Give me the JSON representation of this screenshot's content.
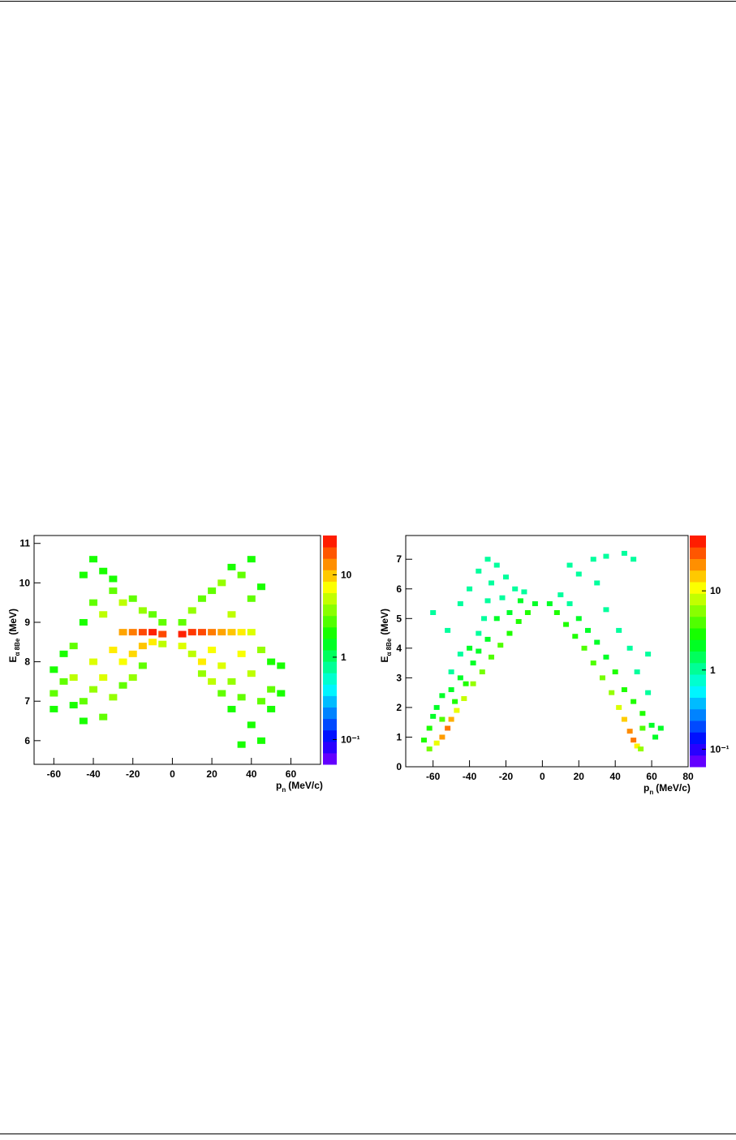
{
  "chart_data": [
    {
      "type": "heatmap",
      "xlabel": [
        "p",
        "n",
        "(MeV/c)"
      ],
      "ylabel": [
        "E",
        "α 8Be",
        "(MeV)"
      ],
      "xlim": [
        -70,
        75
      ],
      "xticks": [
        -60,
        -40,
        -20,
        0,
        20,
        40,
        60
      ],
      "ylim": [
        5.4,
        11.2
      ],
      "yticks": [
        6,
        7,
        8,
        9,
        10,
        11
      ],
      "zlim": [
        0.05,
        30
      ],
      "zlog": true,
      "zticks": [
        {
          "value": 0.1,
          "label": "10⁻¹"
        },
        1,
        10
      ],
      "x": [
        -25,
        -20,
        -15,
        -10,
        -5,
        5,
        10,
        15,
        20,
        25,
        30,
        35,
        40,
        -60,
        -60,
        -60,
        -55,
        -55,
        -50,
        -50,
        -50,
        -45,
        -45,
        -45,
        -45,
        -40,
        -40,
        -40,
        -40,
        -35,
        -35,
        -35,
        -35,
        -30,
        -30,
        -30,
        -30,
        -25,
        -25,
        -25,
        -20,
        -20,
        -20,
        -15,
        -15,
        -15,
        -10,
        -10,
        -5,
        -5,
        5,
        5,
        10,
        10,
        15,
        15,
        15,
        20,
        20,
        20,
        25,
        25,
        25,
        30,
        30,
        30,
        30,
        35,
        35,
        35,
        40,
        40,
        40,
        40,
        45,
        45,
        45,
        50,
        50,
        50,
        55,
        55,
        45,
        35
      ],
      "y": [
        8.75,
        8.75,
        8.75,
        8.75,
        8.7,
        8.7,
        8.75,
        8.75,
        8.75,
        8.75,
        8.75,
        8.75,
        8.75,
        7.8,
        7.2,
        6.8,
        7.5,
        8.2,
        6.9,
        7.6,
        8.4,
        9.0,
        7.0,
        6.5,
        10.2,
        10.6,
        9.5,
        8.0,
        7.3,
        10.3,
        9.2,
        7.6,
        6.6,
        9.8,
        8.3,
        7.1,
        10.1,
        9.5,
        8.0,
        7.4,
        9.6,
        8.2,
        7.6,
        9.3,
        8.4,
        7.9,
        9.2,
        8.5,
        9.0,
        8.45,
        9.0,
        8.4,
        9.3,
        8.2,
        9.6,
        8.0,
        7.7,
        9.8,
        8.3,
        7.5,
        10.0,
        7.9,
        7.2,
        10.4,
        9.2,
        7.5,
        6.8,
        10.2,
        8.2,
        7.1,
        10.6,
        9.6,
        7.7,
        6.4,
        9.9,
        8.3,
        7.0,
        8.0,
        7.3,
        6.8,
        7.9,
        7.2,
        6.0,
        5.9
      ],
      "values": [
        12,
        15,
        20,
        25,
        20,
        25,
        22,
        20,
        15,
        12,
        10,
        8,
        6,
        2,
        3,
        2,
        3,
        2,
        2,
        5,
        3,
        2,
        3,
        2,
        2,
        2,
        3,
        6,
        4,
        2,
        5,
        6,
        3,
        3,
        8,
        4,
        2,
        5,
        7,
        3,
        3,
        9,
        4,
        4,
        10,
        3,
        3,
        8,
        3,
        5,
        3,
        6,
        4,
        5,
        3,
        8,
        4,
        3,
        7,
        5,
        4,
        6,
        3,
        2,
        5,
        4,
        2,
        3,
        7,
        3,
        2,
        3,
        5,
        2,
        2,
        4,
        3,
        2,
        3,
        2,
        2,
        2,
        2,
        2
      ]
    },
    {
      "type": "heatmap",
      "xlabel": [
        "p",
        "n",
        "(MeV/c)"
      ],
      "ylabel": [
        "E",
        "α 8Be",
        "(MeV)"
      ],
      "xlim": [
        -75,
        80
      ],
      "xticks": [
        -60,
        -40,
        -20,
        0,
        20,
        40,
        60,
        80
      ],
      "ylim": [
        0,
        7.8
      ],
      "yticks": [
        0,
        1,
        2,
        3,
        4,
        5,
        6,
        7
      ],
      "zlim": [
        0.06,
        50
      ],
      "zlog": true,
      "zticks": [
        {
          "value": 0.1,
          "label": "10⁻¹"
        },
        1,
        10
      ],
      "x": [
        -62,
        -58,
        -55,
        -52,
        -50,
        -47,
        -43,
        -38,
        -33,
        -28,
        -23,
        -18,
        -13,
        -8,
        -4,
        -65,
        -62,
        -60,
        -58,
        -55,
        -55,
        -50,
        -50,
        -48,
        -45,
        -45,
        -42,
        -40,
        -38,
        -35,
        -35,
        -32,
        -30,
        -30,
        -28,
        -25,
        -25,
        -22,
        -20,
        -18,
        -15,
        -12,
        -10,
        -60,
        -52,
        -45,
        -40,
        -35,
        -30,
        4,
        8,
        13,
        18,
        23,
        28,
        33,
        38,
        42,
        45,
        48,
        50,
        52,
        54,
        10,
        15,
        20,
        25,
        30,
        35,
        40,
        45,
        50,
        55,
        55,
        60,
        62,
        65,
        58,
        52,
        48,
        42,
        35,
        30,
        28,
        35,
        45,
        50,
        20,
        15,
        58
      ],
      "y": [
        0.6,
        0.8,
        1.0,
        1.3,
        1.6,
        1.9,
        2.3,
        2.8,
        3.2,
        3.7,
        4.1,
        4.5,
        4.9,
        5.2,
        5.5,
        0.9,
        1.3,
        1.7,
        2.0,
        2.4,
        1.6,
        2.6,
        3.2,
        2.2,
        3.0,
        3.8,
        2.8,
        4.0,
        3.5,
        4.5,
        3.9,
        5.0,
        4.3,
        5.6,
        6.2,
        5.0,
        6.8,
        5.7,
        6.4,
        5.2,
        6.0,
        5.6,
        5.9,
        5.2,
        4.6,
        5.5,
        6.0,
        6.6,
        7.0,
        5.5,
        5.2,
        4.8,
        4.4,
        4.0,
        3.5,
        3.0,
        2.5,
        2.0,
        1.6,
        1.2,
        0.9,
        0.7,
        0.6,
        5.8,
        5.5,
        5.0,
        4.6,
        4.2,
        3.7,
        3.2,
        2.6,
        2.2,
        1.8,
        1.3,
        1.4,
        1.0,
        1.3,
        2.5,
        3.2,
        4.0,
        4.6,
        5.3,
        6.2,
        7.0,
        7.1,
        7.2,
        7.0,
        6.5,
        6.8,
        3.8
      ],
      "values": [
        5,
        10,
        20,
        25,
        18,
        10,
        8,
        6,
        5,
        4,
        4,
        3,
        3,
        3,
        2,
        3,
        3,
        2,
        2,
        2,
        4,
        2,
        1,
        3,
        2,
        1,
        3,
        2,
        2,
        1,
        2,
        1,
        2,
        1,
        1,
        2,
        1,
        1,
        1,
        2,
        1,
        2,
        1,
        1,
        1,
        1,
        1,
        1,
        1,
        2,
        3,
        3,
        3,
        4,
        4,
        5,
        6,
        9,
        15,
        22,
        25,
        12,
        6,
        1,
        1,
        2,
        2,
        2,
        2,
        3,
        3,
        3,
        3,
        4,
        2,
        2,
        2,
        1,
        1,
        1,
        1,
        1,
        1,
        1,
        1,
        1,
        1,
        1,
        1,
        1
      ]
    }
  ]
}
